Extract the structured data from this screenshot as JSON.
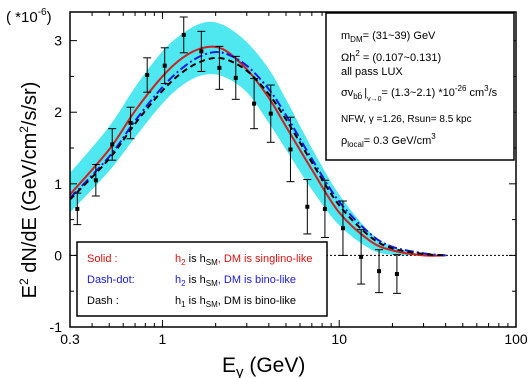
{
  "chart_data": {
    "type": "line",
    "x_scale": "log",
    "xlim": [
      0.3,
      100
    ],
    "ylim": [
      -1,
      3.4
    ],
    "x_ticks": [
      {
        "value": 0.3,
        "label": "0.3"
      },
      {
        "value": 1,
        "label": "1"
      },
      {
        "value": 10,
        "label": "10"
      },
      {
        "value": 100,
        "label": "100"
      }
    ],
    "y_ticks": [
      {
        "value": -1,
        "label": "-1"
      },
      {
        "value": 0,
        "label": "0"
      },
      {
        "value": 1,
        "label": "1"
      },
      {
        "value": 2,
        "label": "2"
      },
      {
        "value": 3,
        "label": "3"
      }
    ],
    "y_multiplier": "( *10",
    "y_multiplier_exp": "-6",
    "y_multiplier_close": ")",
    "xlabel": {
      "main": "E",
      "greek": "γ",
      "unit": " (GeV)"
    },
    "ylabel": {
      "p1": "E",
      "sup1": "2",
      "p2": " dN/dE (GeV/cm",
      "sup2": "2",
      "p3": "/s/sr)"
    },
    "band": {
      "color": "#4fe8f0",
      "x": [
        0.3,
        0.5,
        0.7,
        1,
        1.3,
        1.7,
        2.2,
        3,
        4,
        5,
        7,
        10,
        15,
        20,
        30,
        40
      ],
      "lower": [
        0.6,
        1.18,
        1.65,
        2.12,
        2.38,
        2.52,
        2.5,
        2.28,
        1.85,
        1.48,
        0.92,
        0.42,
        0.09,
        0.01,
        0,
        0
      ],
      "upper": [
        1.15,
        1.8,
        2.35,
        2.85,
        3.1,
        3.25,
        3.22,
        2.98,
        2.6,
        2.18,
        1.5,
        0.85,
        0.32,
        0.12,
        0.01,
        0
      ]
    },
    "series": [
      {
        "name": "Solid",
        "style": "solid",
        "color": "#cc2222",
        "x": [
          0.3,
          0.5,
          0.7,
          1,
          1.3,
          1.7,
          2.2,
          3,
          4,
          5,
          7,
          10,
          15,
          20,
          30,
          40
        ],
        "y": [
          0.85,
          1.48,
          2.02,
          2.5,
          2.76,
          2.9,
          2.88,
          2.6,
          2.2,
          1.8,
          1.2,
          0.6,
          0.2,
          0.07,
          0,
          0
        ]
      },
      {
        "name": "Dash-dot",
        "style": "dashdot",
        "color": "#1a1ae0",
        "x": [
          0.3,
          0.5,
          0.7,
          1,
          1.3,
          1.7,
          2.2,
          3,
          4,
          5,
          7,
          10,
          15,
          20,
          30,
          40
        ],
        "y": [
          0.8,
          1.38,
          1.88,
          2.35,
          2.62,
          2.8,
          2.83,
          2.65,
          2.32,
          1.96,
          1.35,
          0.75,
          0.3,
          0.12,
          0.03,
          0
        ]
      },
      {
        "name": "Dash",
        "style": "dash",
        "color": "#000000",
        "x": [
          0.3,
          0.5,
          0.7,
          1,
          1.3,
          1.7,
          2.2,
          3,
          4,
          5,
          7,
          10,
          15,
          20,
          30,
          40
        ],
        "y": [
          0.78,
          1.35,
          1.84,
          2.3,
          2.56,
          2.72,
          2.75,
          2.58,
          2.25,
          1.9,
          1.3,
          0.7,
          0.26,
          0.1,
          0.02,
          0
        ]
      }
    ],
    "data_points": {
      "x": [
        0.33,
        0.42,
        0.52,
        0.66,
        0.82,
        1.03,
        1.32,
        1.66,
        2.1,
        2.6,
        3.3,
        4.1,
        5.3,
        6.6,
        8.3,
        10.5,
        13.3,
        16.8,
        21.2
      ],
      "y": [
        0.65,
        1.05,
        1.55,
        1.85,
        2.52,
        2.65,
        3.08,
        2.85,
        2.62,
        2.48,
        2.12,
        1.98,
        1.48,
        0.68,
        0.65,
        0.38,
        -0.02,
        -0.22,
        -0.26
      ],
      "err": [
        0.22,
        0.22,
        0.22,
        0.22,
        0.24,
        0.25,
        0.25,
        0.28,
        0.3,
        0.3,
        0.35,
        0.4,
        0.45,
        0.38,
        0.4,
        0.38,
        0.38,
        0.3,
        0.27
      ]
    },
    "legend": {
      "items": [
        {
          "style": "Solid :",
          "color": "#dd1111",
          "h_index": "2",
          "sm": "SM",
          "text_rest": ", DM is singlino-like"
        },
        {
          "style": "Dash-dot:",
          "color": "#1a1ae0",
          "h_index": "2",
          "sm": "SM",
          "text_rest": ", DM is bino-like"
        },
        {
          "style": "Dash :",
          "color": "#000000",
          "h_index": "1",
          "sm": "SM",
          "text_rest": ", DM is bino-like"
        }
      ],
      "h_letter": "h",
      "is_word": " is h"
    },
    "annotation": {
      "line1": {
        "m": "m",
        "sub": "DM",
        "rest": "= (31~39) GeV"
      },
      "line2": {
        "omega": "Ωh",
        "sup": "2",
        "rest": " = (0.107~0.131)"
      },
      "line3": "all pass LUX",
      "line4": {
        "sigma": "σv",
        "sub": "bb̄",
        "sub2": "v→0",
        "rest": "= (1.3~2.1) *10",
        "sup": "-26",
        "unit": " cm",
        "sup3": "3",
        "unit2": "/s"
      },
      "line5": "NFW, γ =1.26,  Rsun= 8.5 kpc",
      "line6": {
        "rho": "ρ",
        "sub": "local",
        "rest": "= 0.3 GeV/cm",
        "sup": "3"
      }
    }
  }
}
